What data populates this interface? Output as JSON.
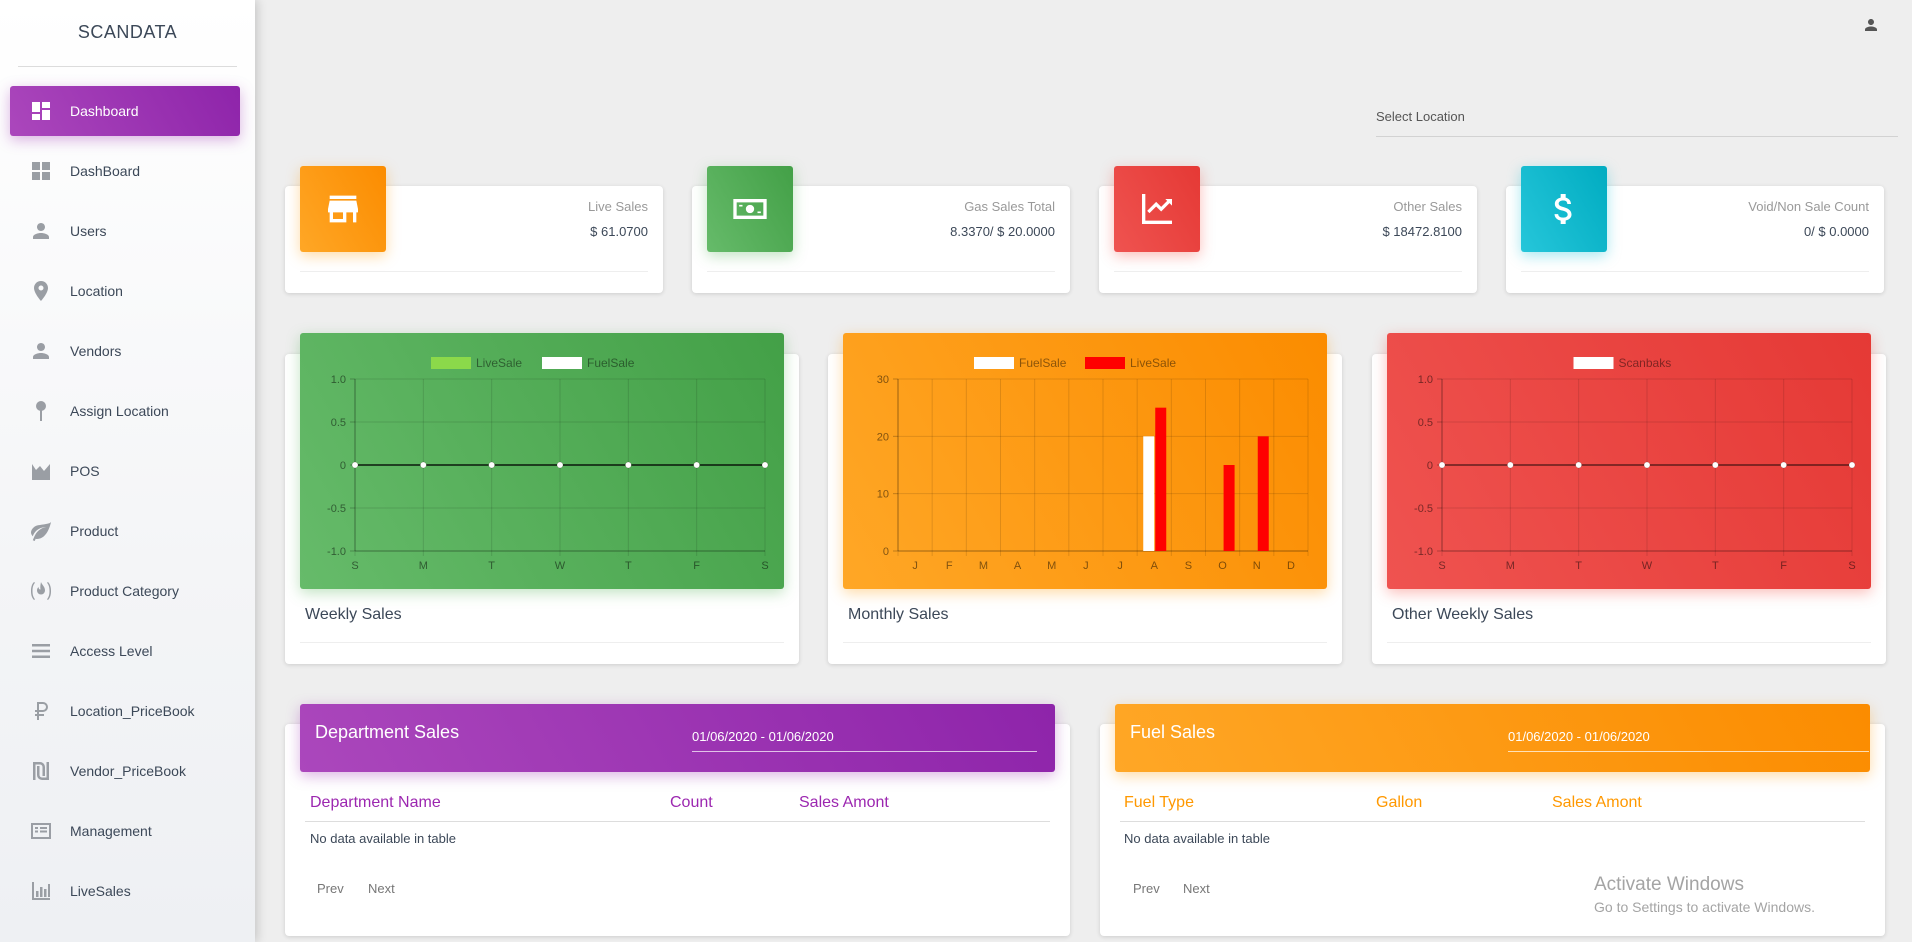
{
  "app": {
    "brand": "SCANDATA"
  },
  "sidebar": {
    "items": [
      {
        "label": "Dashboard",
        "icon": "dashboard-icon",
        "active": true
      },
      {
        "label": "DashBoard",
        "icon": "grid-icon"
      },
      {
        "label": "Users",
        "icon": "user-icon"
      },
      {
        "label": "Location",
        "icon": "location-pin-icon"
      },
      {
        "label": "Vendors",
        "icon": "vendor-icon"
      },
      {
        "label": "Assign Location",
        "icon": "pushpin-icon"
      },
      {
        "label": "POS",
        "icon": "area-chart-icon"
      },
      {
        "label": "Product",
        "icon": "leaf-icon"
      },
      {
        "label": "Product Category",
        "icon": "flame-icon"
      },
      {
        "label": "Access Level",
        "icon": "list-icon"
      },
      {
        "label": "Location_PriceBook",
        "icon": "ruble-icon"
      },
      {
        "label": "Vendor_PriceBook",
        "icon": "shekel-icon"
      },
      {
        "label": "Management",
        "icon": "card-list-icon"
      },
      {
        "label": "LiveSales",
        "icon": "bar-chart-icon"
      }
    ]
  },
  "header": {
    "location_label": "Select Location",
    "user_icon": "person-icon"
  },
  "stats": [
    {
      "title": "Live Sales",
      "value": "$ 61.0700",
      "icon": "store-icon",
      "color": "#fb8c00"
    },
    {
      "title": "Gas Sales Total",
      "value": "8.3370/ $ 20.0000",
      "icon": "money-icon",
      "color": "#43a047"
    },
    {
      "title": "Other Sales",
      "value": "$ 18472.8100",
      "icon": "trending-up-icon",
      "color": "#e53935"
    },
    {
      "title": "Void/Non Sale Count",
      "value": "0/ $ 0.0000",
      "icon": "dollar-icon",
      "color": "#00acc1"
    }
  ],
  "charts": {
    "weekly": {
      "title": "Weekly Sales"
    },
    "monthly": {
      "title": "Monthly Sales"
    },
    "other": {
      "title": "Other Weekly Sales"
    }
  },
  "chart_data": [
    {
      "type": "line",
      "title": "",
      "categories": [
        "S",
        "M",
        "T",
        "W",
        "T",
        "F",
        "S"
      ],
      "series": [
        {
          "name": "LiveSale",
          "values": [
            0,
            0,
            0,
            0,
            0,
            0,
            0
          ],
          "color": "#8bd94a"
        },
        {
          "name": "FuelSale",
          "values": [
            0,
            0,
            0,
            0,
            0,
            0,
            0
          ],
          "color": "#ffffff"
        }
      ],
      "ylim": [
        -1.0,
        1.0
      ],
      "yticks": [
        "1.0",
        "0.5",
        "0",
        "-0.5",
        "-1.0"
      ],
      "grid": true,
      "legend": "top-center"
    },
    {
      "type": "bar",
      "title": "",
      "categories": [
        "J",
        "F",
        "M",
        "A",
        "M",
        "J",
        "J",
        "A",
        "S",
        "O",
        "N",
        "D"
      ],
      "series": [
        {
          "name": "FuelSale",
          "values": [
            0,
            0,
            0,
            0,
            0,
            0,
            0,
            20,
            0,
            0,
            0,
            0
          ],
          "color": "#ffffff"
        },
        {
          "name": "LiveSale",
          "values": [
            0,
            0,
            0,
            0,
            0,
            0,
            0,
            25,
            0,
            15,
            20,
            0
          ],
          "color": "#ff0000"
        }
      ],
      "ylim": [
        0,
        30
      ],
      "yticks": [
        "30",
        "20",
        "10",
        "0"
      ],
      "grid": true,
      "legend": "top-center"
    },
    {
      "type": "line",
      "title": "",
      "categories": [
        "S",
        "M",
        "T",
        "W",
        "T",
        "F",
        "S"
      ],
      "series": [
        {
          "name": "Scanbaks",
          "values": [
            0,
            0,
            0,
            0,
            0,
            0,
            0
          ],
          "color": "#ffffff"
        }
      ],
      "ylim": [
        -1.0,
        1.0
      ],
      "yticks": [
        "1.0",
        "0.5",
        "0",
        "-0.5",
        "-1.0"
      ],
      "grid": true,
      "legend": "top-center"
    }
  ],
  "department": {
    "title": "Department Sales",
    "date_range": "01/06/2020 - 01/06/2020",
    "columns": [
      "Department Name",
      "Count",
      "Sales Amont"
    ],
    "empty": "No data available in table",
    "prev": "Prev",
    "next": "Next",
    "header_color": "#9c27b0",
    "column_color": "#9c27b0"
  },
  "fuel": {
    "title": "Fuel Sales",
    "date_range": "01/06/2020 - 01/06/2020",
    "columns": [
      "Fuel Type",
      "Gallon",
      "Sales Amont"
    ],
    "empty": "No data available in table",
    "prev": "Prev",
    "next": "Next",
    "header_color": "#ff9800",
    "column_color": "#ff9800"
  },
  "watermark": {
    "line1": "Activate Windows",
    "line2": "Go to Settings to activate Windows."
  }
}
